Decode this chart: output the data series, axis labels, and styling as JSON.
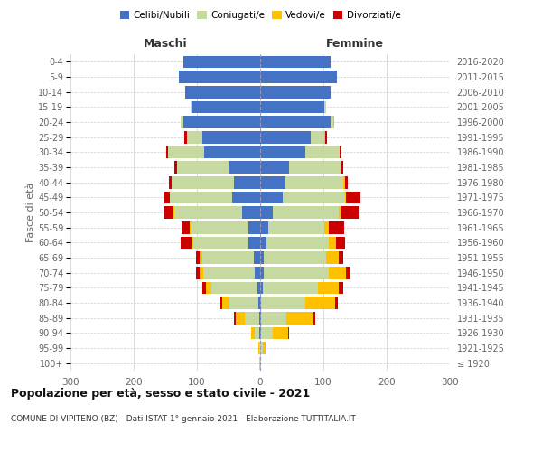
{
  "age_groups": [
    "100+",
    "95-99",
    "90-94",
    "85-89",
    "80-84",
    "75-79",
    "70-74",
    "65-69",
    "60-64",
    "55-59",
    "50-54",
    "45-49",
    "40-44",
    "35-39",
    "30-34",
    "25-29",
    "20-24",
    "15-19",
    "10-14",
    "5-9",
    "0-4"
  ],
  "birth_years": [
    "≤ 1920",
    "1921-1925",
    "1926-1930",
    "1931-1935",
    "1936-1940",
    "1941-1945",
    "1946-1950",
    "1951-1955",
    "1956-1960",
    "1961-1965",
    "1966-1970",
    "1971-1975",
    "1976-1980",
    "1981-1985",
    "1986-1990",
    "1991-1995",
    "1996-2000",
    "2001-2005",
    "2006-2010",
    "2011-2015",
    "2016-2020"
  ],
  "male": {
    "celibi": [
      0,
      0,
      1,
      1,
      3,
      5,
      8,
      10,
      18,
      18,
      28,
      45,
      42,
      50,
      88,
      92,
      122,
      108,
      118,
      128,
      122
    ],
    "coniugati": [
      1,
      2,
      8,
      24,
      45,
      72,
      82,
      82,
      88,
      92,
      108,
      98,
      98,
      82,
      58,
      24,
      4,
      2,
      0,
      0,
      0
    ],
    "vedovi": [
      0,
      1,
      6,
      14,
      12,
      9,
      6,
      4,
      2,
      1,
      1,
      0,
      0,
      0,
      0,
      0,
      0,
      0,
      0,
      0,
      0
    ],
    "divorziati": [
      0,
      0,
      0,
      2,
      5,
      6,
      6,
      6,
      18,
      14,
      16,
      8,
      4,
      4,
      2,
      4,
      0,
      0,
      0,
      0,
      0
    ]
  },
  "female": {
    "nubili": [
      0,
      0,
      2,
      2,
      2,
      4,
      5,
      6,
      10,
      13,
      20,
      36,
      40,
      45,
      72,
      80,
      112,
      102,
      112,
      122,
      112
    ],
    "coniugate": [
      1,
      4,
      18,
      40,
      70,
      88,
      104,
      98,
      98,
      88,
      104,
      98,
      92,
      82,
      54,
      22,
      4,
      2,
      0,
      0,
      0
    ],
    "vedove": [
      1,
      4,
      24,
      42,
      46,
      32,
      26,
      20,
      12,
      8,
      5,
      2,
      2,
      1,
      0,
      1,
      1,
      0,
      0,
      0,
      0
    ],
    "divorziate": [
      0,
      0,
      2,
      3,
      5,
      8,
      8,
      8,
      14,
      24,
      26,
      22,
      4,
      4,
      2,
      2,
      0,
      0,
      0,
      0,
      0
    ]
  },
  "colors": {
    "celibi": "#4472c4",
    "coniugati": "#c5d9a0",
    "vedovi": "#ffc000",
    "divorziati": "#cc0000"
  },
  "title": "Popolazione per età, sesso e stato civile - 2021",
  "subtitle": "COMUNE DI VIPITENO (BZ) - Dati ISTAT 1° gennaio 2021 - Elaborazione TUTTITALIA.IT",
  "xlabel_left": "Maschi",
  "xlabel_right": "Femmine",
  "ylabel_left": "Fasce di età",
  "xlim": 300,
  "legend_labels": [
    "Celibi/Nubili",
    "Coniugati/e",
    "Vedovi/e",
    "Divorziati/e"
  ],
  "bg_color": "#ffffff",
  "grid_color": "#cccccc"
}
